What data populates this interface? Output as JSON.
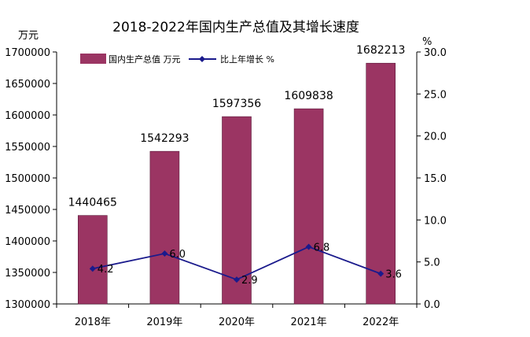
{
  "chart_data": {
    "type": "bar+line",
    "title": "2018-2022年国内生产总值及其增长速度",
    "categories": [
      "2018年",
      "2019年",
      "2020年",
      "2021年",
      "2022年"
    ],
    "series": [
      {
        "name": "国内生产总值 万元",
        "kind": "bar",
        "axis": "left",
        "values": [
          1440465,
          1542293,
          1597356,
          1609838,
          1682213
        ]
      },
      {
        "name": "比上年增长 %",
        "kind": "line",
        "axis": "right",
        "values": [
          4.2,
          6.0,
          2.9,
          6.8,
          3.6
        ]
      }
    ],
    "y_left": {
      "label": "万元",
      "min": 1300000,
      "max": 1700000,
      "step": 50000,
      "ticks": [
        "1300000",
        "1350000",
        "1400000",
        "1450000",
        "1500000",
        "1550000",
        "1600000",
        "1650000",
        "1700000"
      ]
    },
    "y_right": {
      "label": "%",
      "min": 0,
      "max": 30,
      "step": 5,
      "ticks": [
        "0.0",
        "5.0",
        "10.0",
        "15.0",
        "20.0",
        "25.0",
        "30.0"
      ]
    },
    "bar_labels": [
      "1440465",
      "1542293",
      "1597356",
      "1609838",
      "1682213"
    ],
    "line_labels": [
      "4.2",
      "6.0",
      "2.9",
      "6.8",
      "3.6"
    ],
    "colors": {
      "bar": "#9b3563",
      "line": "#1a1a8c",
      "axis": "#000000"
    },
    "legend": {
      "bar_label": "国内生产总值 万元",
      "line_label": "比上年增长 %",
      "position": "top-left"
    }
  }
}
